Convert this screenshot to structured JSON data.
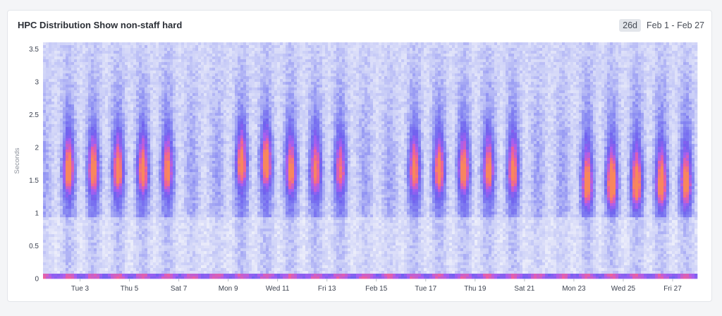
{
  "panel": {
    "title": "HPC Distribution Show non-staff hard",
    "range_badge": "26d",
    "range_text": "Feb 1 - Feb 27"
  },
  "chart_data": {
    "type": "heatmap",
    "title": "HPC Distribution Show non-staff hard",
    "ylabel": "Seconds",
    "ylim": [
      0,
      3.6
    ],
    "yticks": [
      0,
      0.5,
      1,
      1.5,
      2,
      2.5,
      3,
      3.5
    ],
    "xlim": [
      "2026-02-01T12:00",
      "2026-02-28T00:00"
    ],
    "xticks": [
      {
        "label": "Tue 3",
        "date": "2026-02-03"
      },
      {
        "label": "Thu 5",
        "date": "2026-02-05"
      },
      {
        "label": "Sat 7",
        "date": "2026-02-07"
      },
      {
        "label": "Mon 9",
        "date": "2026-02-09"
      },
      {
        "label": "Wed 11",
        "date": "2026-02-11"
      },
      {
        "label": "Fri 13",
        "date": "2026-02-13"
      },
      {
        "label": "Feb 15",
        "date": "2026-02-15"
      },
      {
        "label": "Tue 17",
        "date": "2026-02-17"
      },
      {
        "label": "Thu 19",
        "date": "2026-02-19"
      },
      {
        "label": "Sat 21",
        "date": "2026-02-21"
      },
      {
        "label": "Mon 23",
        "date": "2026-02-23"
      },
      {
        "label": "Wed 25",
        "date": "2026-02-25"
      },
      {
        "label": "Fri 27",
        "date": "2026-02-27"
      }
    ],
    "color_scale": [
      "#f3f4fb",
      "#c9cdf7",
      "#8a8cf2",
      "#6f62ef",
      "#a85ef0",
      "#ec5fa0",
      "#f8875c"
    ],
    "daily_peaks": [
      {
        "date": "2026-02-02",
        "center_seconds": 1.6,
        "intensity": 0.9
      },
      {
        "date": "2026-02-03",
        "center_seconds": 1.6,
        "intensity": 0.85
      },
      {
        "date": "2026-02-04",
        "center_seconds": 1.6,
        "intensity": 0.85
      },
      {
        "date": "2026-02-05",
        "center_seconds": 1.6,
        "intensity": 0.85
      },
      {
        "date": "2026-02-06",
        "center_seconds": 1.6,
        "intensity": 0.8
      },
      {
        "date": "2026-02-09",
        "center_seconds": 1.7,
        "intensity": 0.85
      },
      {
        "date": "2026-02-10",
        "center_seconds": 1.7,
        "intensity": 0.9
      },
      {
        "date": "2026-02-11",
        "center_seconds": 1.6,
        "intensity": 0.8
      },
      {
        "date": "2026-02-12",
        "center_seconds": 1.6,
        "intensity": 0.75
      },
      {
        "date": "2026-02-13",
        "center_seconds": 1.6,
        "intensity": 0.65
      },
      {
        "date": "2026-02-16",
        "center_seconds": 1.6,
        "intensity": 0.8
      },
      {
        "date": "2026-02-17",
        "center_seconds": 1.6,
        "intensity": 0.85
      },
      {
        "date": "2026-02-18",
        "center_seconds": 1.6,
        "intensity": 0.85
      },
      {
        "date": "2026-02-19",
        "center_seconds": 1.6,
        "intensity": 0.8
      },
      {
        "date": "2026-02-20",
        "center_seconds": 1.6,
        "intensity": 0.8
      },
      {
        "date": "2026-02-23",
        "center_seconds": 1.4,
        "intensity": 0.9
      },
      {
        "date": "2026-02-24",
        "center_seconds": 1.4,
        "intensity": 1.0
      },
      {
        "date": "2026-02-25",
        "center_seconds": 1.4,
        "intensity": 0.95
      },
      {
        "date": "2026-02-26",
        "center_seconds": 1.4,
        "intensity": 0.9
      },
      {
        "date": "2026-02-27",
        "center_seconds": 1.4,
        "intensity": 0.85
      }
    ],
    "grid": false,
    "legend": "none"
  }
}
